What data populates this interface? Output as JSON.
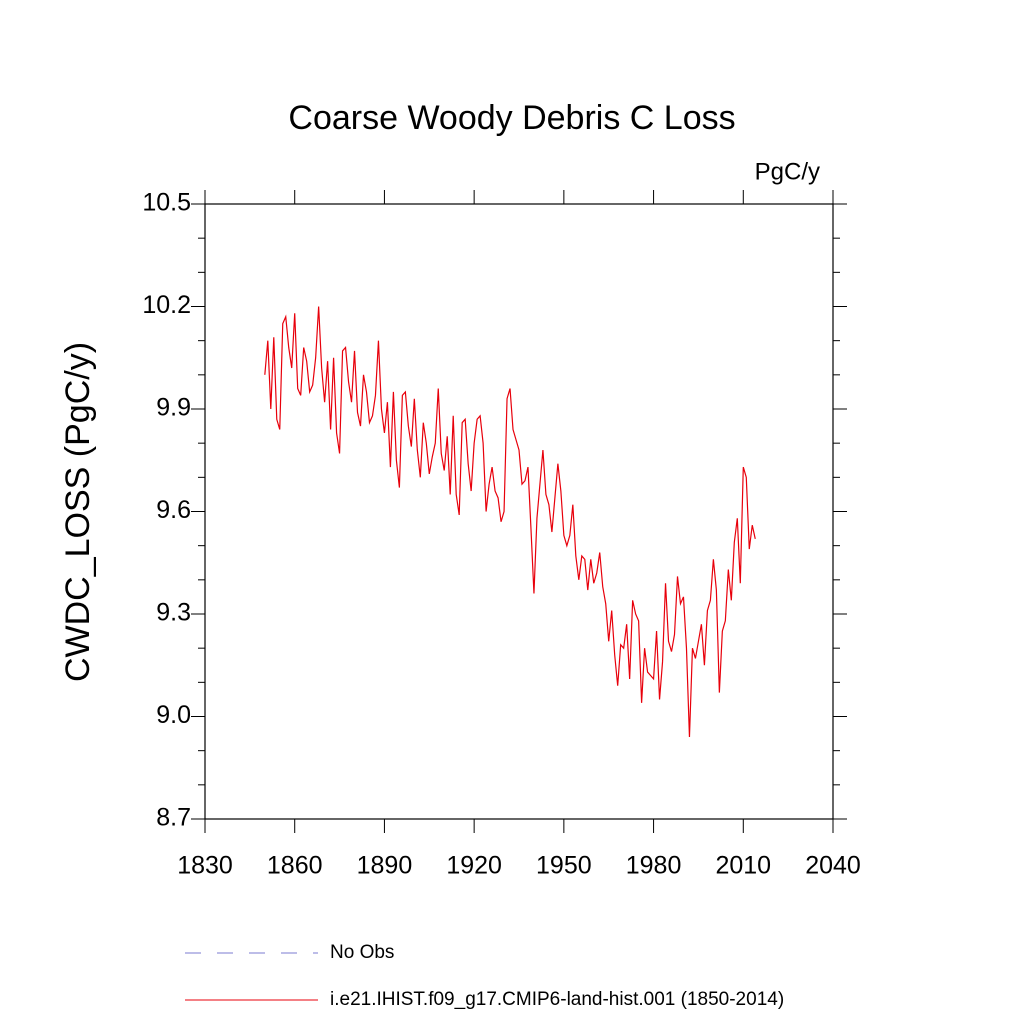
{
  "chart_data": {
    "type": "line",
    "title": "Coarse Woody Debris C Loss",
    "units": "PgC/y",
    "y_label": "CWDC_LOSS  (PgC/y)",
    "xlim": [
      1830,
      2040
    ],
    "xticks": [
      1830,
      1860,
      1890,
      1920,
      1950,
      1980,
      2010,
      2040
    ],
    "ylim": [
      8.7,
      10.5
    ],
    "yticks": [
      10.5,
      10.2,
      9.9,
      9.6,
      9.3,
      {
        "value": 9,
        "label": "9.0"
      },
      8.7
    ],
    "yminorticks": [
      10.4,
      10.3,
      10.1,
      10.0,
      9.8,
      9.7,
      9.5,
      9.4,
      9.2,
      9.1,
      8.9,
      8.8
    ],
    "obs": {
      "name": "No Obs",
      "color": "#7b7bd0"
    },
    "x": [
      1850,
      1851,
      1852,
      1853,
      1854,
      1855,
      1856,
      1857,
      1858,
      1859,
      1860,
      1861,
      1862,
      1863,
      1864,
      1865,
      1866,
      1867,
      1868,
      1869,
      1870,
      1871,
      1872,
      1873,
      1874,
      1875,
      1876,
      1877,
      1878,
      1879,
      1880,
      1881,
      1882,
      1883,
      1884,
      1885,
      1886,
      1887,
      1888,
      1889,
      1890,
      1891,
      1892,
      1893,
      1894,
      1895,
      1896,
      1897,
      1898,
      1899,
      1900,
      1901,
      1902,
      1903,
      1904,
      1905,
      1906,
      1907,
      1908,
      1909,
      1910,
      1911,
      1912,
      1913,
      1914,
      1915,
      1916,
      1917,
      1918,
      1919,
      1920,
      1921,
      1922,
      1923,
      1924,
      1925,
      1926,
      1927,
      1928,
      1929,
      1930,
      1931,
      1932,
      1933,
      1934,
      1935,
      1936,
      1937,
      1938,
      1939,
      1940,
      1941,
      1942,
      1943,
      1944,
      1945,
      1946,
      1947,
      1948,
      1949,
      1950,
      1951,
      1952,
      1953,
      1954,
      1955,
      1956,
      1957,
      1958,
      1959,
      1960,
      1961,
      1962,
      1963,
      1964,
      1965,
      1966,
      1967,
      1968,
      1969,
      1970,
      1971,
      1972,
      1973,
      1974,
      1975,
      1976,
      1977,
      1978,
      1979,
      1980,
      1981,
      1982,
      1983,
      1984,
      1985,
      1986,
      1987,
      1988,
      1989,
      1990,
      1991,
      1992,
      1993,
      1994,
      1995,
      1996,
      1997,
      1998,
      1999,
      2000,
      2001,
      2002,
      2003,
      2004,
      2005,
      2006,
      2007,
      2008,
      2009,
      2010,
      2011,
      2012,
      2013,
      2014
    ],
    "series": [
      {
        "name": "i.e21.IHIST.f09_g17.CMIP6-land-hist.001 (1850-2014)",
        "color": "#e8000b",
        "values": [
          10.0,
          10.1,
          9.9,
          10.11,
          9.87,
          9.84,
          10.15,
          10.17,
          10.08,
          10.02,
          10.18,
          9.96,
          9.94,
          10.08,
          10.04,
          9.95,
          9.97,
          10.05,
          10.2,
          10.02,
          9.92,
          10.04,
          9.84,
          10.05,
          9.83,
          9.77,
          10.07,
          10.08,
          9.98,
          9.92,
          10.07,
          9.89,
          9.85,
          10.0,
          9.95,
          9.86,
          9.88,
          9.94,
          10.1,
          9.9,
          9.83,
          9.92,
          9.73,
          9.95,
          9.75,
          9.67,
          9.94,
          9.95,
          9.85,
          9.79,
          9.93,
          9.78,
          9.7,
          9.86,
          9.8,
          9.71,
          9.76,
          9.8,
          9.96,
          9.77,
          9.72,
          9.82,
          9.65,
          9.88,
          9.65,
          9.59,
          9.86,
          9.87,
          9.74,
          9.66,
          9.8,
          9.87,
          9.88,
          9.8,
          9.6,
          9.68,
          9.73,
          9.66,
          9.64,
          9.57,
          9.6,
          9.93,
          9.96,
          9.84,
          9.81,
          9.78,
          9.68,
          9.69,
          9.73,
          9.55,
          9.36,
          9.58,
          9.68,
          9.78,
          9.65,
          9.62,
          9.54,
          9.64,
          9.74,
          9.66,
          9.53,
          9.5,
          9.53,
          9.62,
          9.47,
          9.4,
          9.47,
          9.46,
          9.37,
          9.46,
          9.39,
          9.42,
          9.48,
          9.38,
          9.33,
          9.22,
          9.31,
          9.18,
          9.09,
          9.21,
          9.2,
          9.27,
          9.11,
          9.34,
          9.3,
          9.28,
          9.04,
          9.2,
          9.13,
          9.12,
          9.11,
          9.25,
          9.05,
          9.16,
          9.39,
          9.22,
          9.19,
          9.24,
          9.41,
          9.33,
          9.35,
          9.2,
          8.94,
          9.2,
          9.17,
          9.22,
          9.27,
          9.15,
          9.31,
          9.34,
          9.46,
          9.37,
          9.07,
          9.25,
          9.28,
          9.43,
          9.34,
          9.51,
          9.58,
          9.39,
          9.73,
          9.7,
          9.49,
          9.56,
          9.52
        ]
      }
    ]
  }
}
